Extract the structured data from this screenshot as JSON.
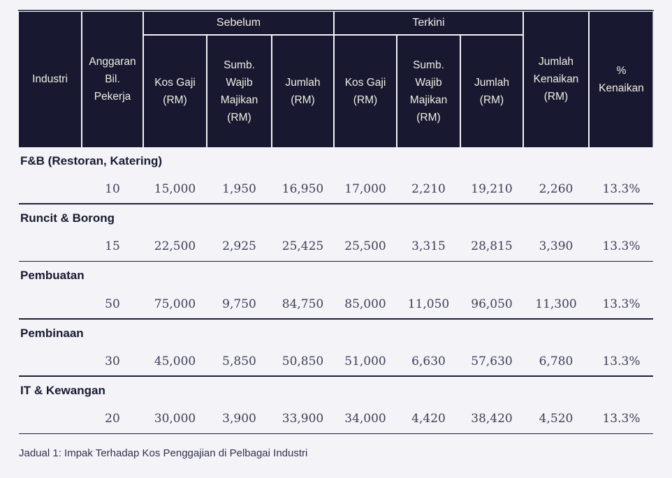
{
  "table": {
    "header": {
      "industri": "Industri",
      "anggaran": "Anggaran\nBil.\nPekerja",
      "group_sebelum": "Sebelum",
      "group_terkini": "Terkini",
      "sebelum_kos_gaji": "Kos Gaji\n(RM)",
      "sebelum_sumb_wajib": "Sumb.\nWajib\nMajikan\n(RM)",
      "sebelum_jumlah": "Jumlah\n(RM)",
      "terkini_kos_gaji": "Kos Gaji\n(RM)",
      "terkini_sumb_wajib": "Sumb.\nWajib\nMajikan\n(RM)",
      "terkini_jumlah": "Jumlah\n(RM)",
      "jumlah_kenaikan": "Jumlah\nKenaikan\n(RM)",
      "pct_kenaikan": "%\nKenaikan"
    },
    "rows": [
      {
        "industry": "F&B (Restoran, Katering)",
        "values": [
          "10",
          "15,000",
          "1,950",
          "16,950",
          "17,000",
          "2,210",
          "19,210",
          "2,260",
          "13.3%"
        ]
      },
      {
        "industry": "Runcit & Borong",
        "values": [
          "15",
          "22,500",
          "2,925",
          "25,425",
          "25,500",
          "3,315",
          "28,815",
          "3,390",
          "13.3%"
        ]
      },
      {
        "industry": "Pembuatan",
        "values": [
          "50",
          "75,000",
          "9,750",
          "84,750",
          "85,000",
          "11,050",
          "96,050",
          "11,300",
          "13.3%"
        ]
      },
      {
        "industry": "Pembinaan",
        "values": [
          "30",
          "45,000",
          "5,850",
          "50,850",
          "51,000",
          "6,630",
          "57,630",
          "6,780",
          "13.3%"
        ]
      },
      {
        "industry": "IT & Kewangan",
        "values": [
          "20",
          "30,000",
          "3,900",
          "33,900",
          "34,000",
          "4,420",
          "38,420",
          "4,520",
          "13.3%"
        ]
      }
    ],
    "caption": "Jadual 1: Impak Terhadap Kos Penggajian di Pelbagai Industri"
  },
  "colors": {
    "page_background": "#f3f3f8",
    "header_background": "#181930",
    "header_text": "#f2efe6",
    "body_text": "#3f4058",
    "industry_text": "#181a30",
    "separator": "#1f2037"
  }
}
